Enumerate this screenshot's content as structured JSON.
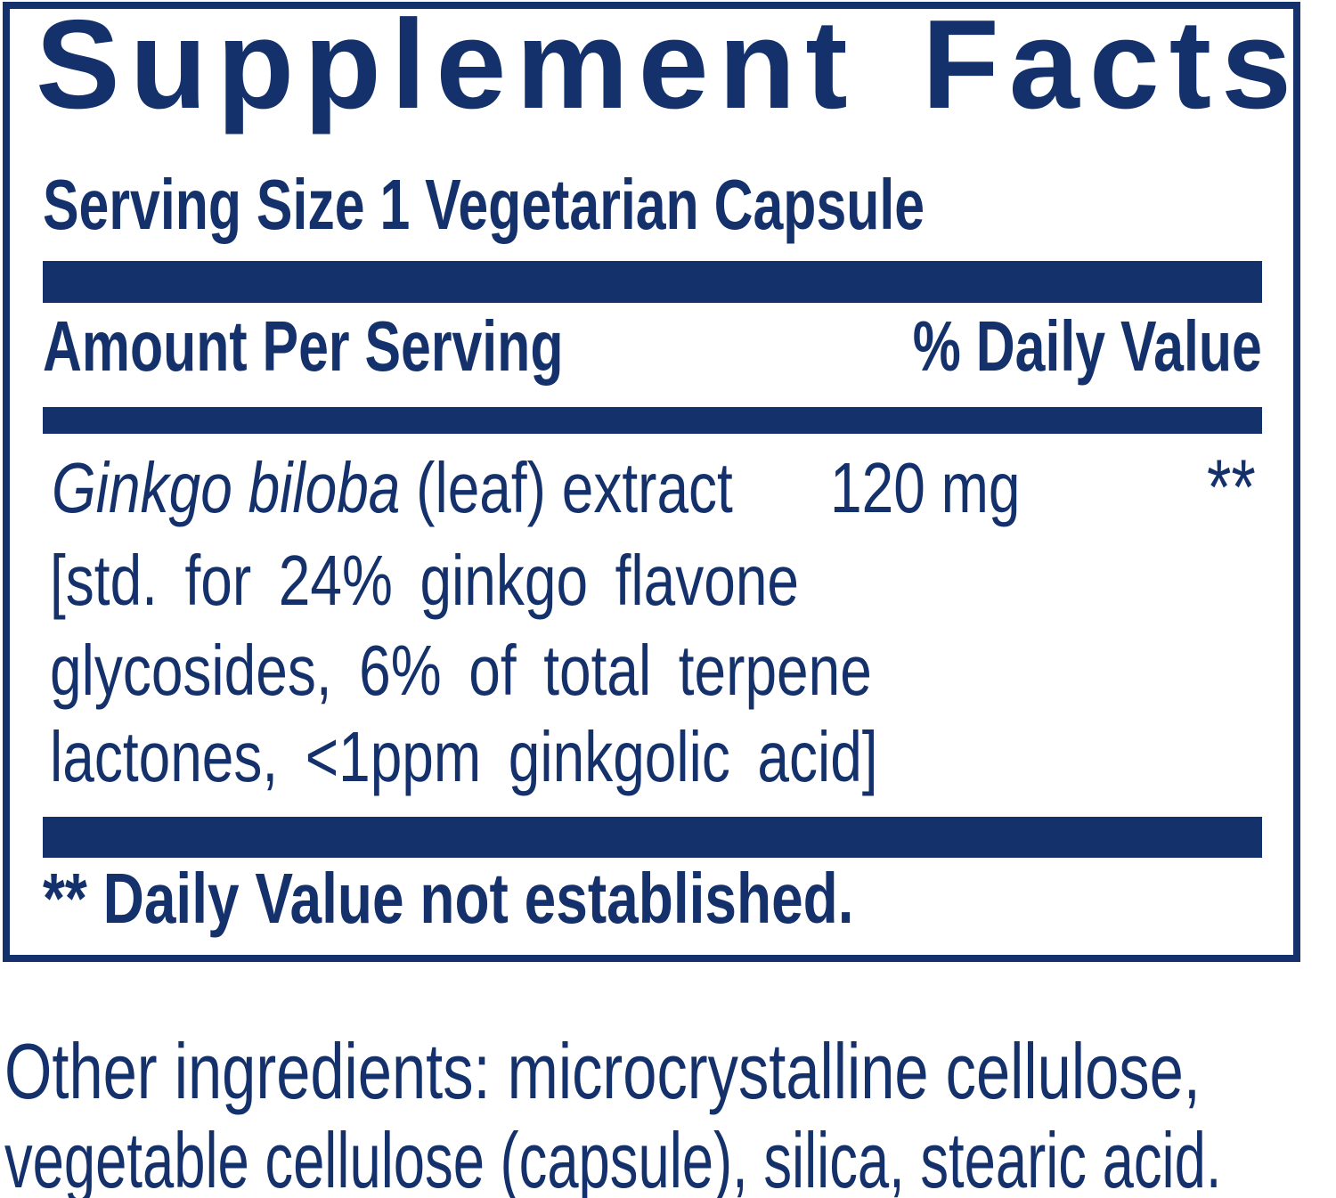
{
  "panel": {
    "title": "Supplement Facts",
    "serving_size": "Serving Size 1 Vegetarian Capsule",
    "columns": {
      "amount_header": "Amount Per Serving",
      "daily_value_header": "% Daily Value"
    },
    "rows": [
      {
        "name_italic": "Ginkgo biloba",
        "name_rest": "(leaf) extract",
        "amount": "120 mg",
        "daily_value": "**",
        "detail_lines": [
          "[std. for 24% ginkgo flavone",
          "glycosides, 6% of total terpene",
          "lactones, <1ppm ginkgolic acid]"
        ]
      }
    ],
    "footnote": "** Daily Value not established."
  },
  "other_ingredients": {
    "line1": "Other ingredients: microcrystalline cellulose,",
    "line2": "vegetable cellulose (capsule), silica, stearic acid."
  },
  "colors": {
    "navy": "#14316b",
    "background": "#ffffff"
  }
}
